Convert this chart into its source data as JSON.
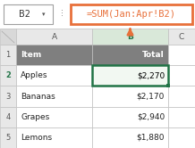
{
  "formula_bar_cell": "B2",
  "formula_bar_text": "=SUM(Jan:Apr!B2)",
  "header_row": [
    "Item",
    "Total"
  ],
  "rows": [
    [
      "Apples",
      "$2,270"
    ],
    [
      "Bananas",
      "$2,170"
    ],
    [
      "Grapes",
      "$2,940"
    ],
    [
      "Lemons",
      "$1,880"
    ]
  ],
  "active_row_idx": 1,
  "bg_color": "#ffffff",
  "header_bg": "#7f7f7f",
  "header_text_color": "#ffffff",
  "active_col_header_text": "#217346",
  "active_col_header_bg": "#d9e8d9",
  "active_row_num_color": "#217346",
  "cell_border_color": "#c0c0c0",
  "active_cell_border": "#217346",
  "formula_bar_border": "#e8703a",
  "formula_bar_text_color": "#e8703a",
  "arrow_color": "#e8703a",
  "corner_bg": "#d8d8d8",
  "col_header_bg": "#e8e8e8",
  "row_num_bg": "#e8e8e8",
  "row_num_active_color": "#217346",
  "sep_color": "#888888",
  "ref_box_border": "#a0a0a0",
  "fill_handle_color": "#217346"
}
